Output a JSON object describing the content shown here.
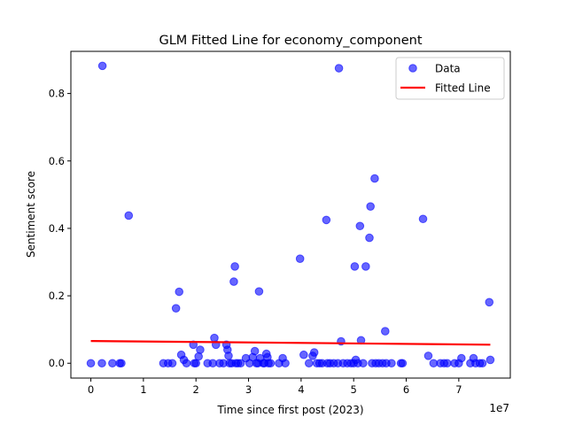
{
  "chart_data": {
    "type": "scatter",
    "title": "GLM Fitted Line for economy_component",
    "xlabel": "Time since first post (2023)",
    "ylabel": "Sentiment score",
    "x_offset_label": "1e7",
    "x_scale_factor": 10000000,
    "xlim": [
      -0.38,
      7.98
    ],
    "ylim": [
      -0.044,
      0.925
    ],
    "x_ticks": [
      0,
      1,
      2,
      3,
      4,
      5,
      6,
      7
    ],
    "x_tick_labels": [
      "0",
      "1",
      "2",
      "3",
      "4",
      "5",
      "6",
      "7"
    ],
    "y_ticks": [
      0.0,
      0.2,
      0.4,
      0.6,
      0.8
    ],
    "y_tick_labels": [
      "0.0",
      "0.2",
      "0.4",
      "0.6",
      "0.8"
    ],
    "grid": false,
    "legend_position": "top-right",
    "legend": [
      {
        "label": "Data",
        "kind": "marker",
        "color": "#0000ff"
      },
      {
        "label": "Fitted Line",
        "kind": "line",
        "color": "#ff0000"
      }
    ],
    "series": [
      {
        "name": "Data",
        "kind": "scatter",
        "color": "#0000ff",
        "points": [
          [
            0.0,
            0.0
          ],
          [
            0.21,
            0.0
          ],
          [
            0.22,
            0.882
          ],
          [
            0.41,
            0.0
          ],
          [
            0.55,
            0.0
          ],
          [
            0.58,
            0.0
          ],
          [
            0.72,
            0.438
          ],
          [
            1.38,
            0.0
          ],
          [
            1.47,
            0.0
          ],
          [
            1.55,
            0.0
          ],
          [
            1.62,
            0.163
          ],
          [
            1.68,
            0.212
          ],
          [
            1.72,
            0.025
          ],
          [
            1.77,
            0.01
          ],
          [
            1.82,
            0.0
          ],
          [
            1.95,
            0.055
          ],
          [
            1.97,
            0.0
          ],
          [
            2.0,
            0.0
          ],
          [
            2.05,
            0.02
          ],
          [
            2.08,
            0.04
          ],
          [
            2.22,
            0.0
          ],
          [
            2.32,
            0.0
          ],
          [
            2.35,
            0.075
          ],
          [
            2.38,
            0.055
          ],
          [
            2.45,
            0.0
          ],
          [
            2.52,
            0.0
          ],
          [
            2.58,
            0.055
          ],
          [
            2.6,
            0.04
          ],
          [
            2.62,
            0.022
          ],
          [
            2.64,
            0.0
          ],
          [
            2.68,
            0.0
          ],
          [
            2.72,
            0.242
          ],
          [
            2.74,
            0.287
          ],
          [
            2.76,
            0.0
          ],
          [
            2.8,
            0.0
          ],
          [
            2.85,
            0.0
          ],
          [
            2.95,
            0.015
          ],
          [
            3.02,
            0.0
          ],
          [
            3.08,
            0.018
          ],
          [
            3.12,
            0.036
          ],
          [
            3.15,
            0.0
          ],
          [
            3.18,
            0.0
          ],
          [
            3.2,
            0.213
          ],
          [
            3.22,
            0.015
          ],
          [
            3.28,
            0.0
          ],
          [
            3.3,
            0.0
          ],
          [
            3.34,
            0.028
          ],
          [
            3.36,
            0.018
          ],
          [
            3.38,
            0.0
          ],
          [
            3.42,
            0.0
          ],
          [
            3.58,
            0.0
          ],
          [
            3.65,
            0.015
          ],
          [
            3.7,
            0.0
          ],
          [
            3.98,
            0.31
          ],
          [
            4.05,
            0.025
          ],
          [
            4.15,
            0.0
          ],
          [
            4.22,
            0.022
          ],
          [
            4.25,
            0.032
          ],
          [
            4.3,
            0.0
          ],
          [
            4.35,
            0.0
          ],
          [
            4.4,
            0.0
          ],
          [
            4.48,
            0.425
          ],
          [
            4.5,
            0.0
          ],
          [
            4.55,
            0.0
          ],
          [
            4.62,
            0.0
          ],
          [
            4.7,
            0.0
          ],
          [
            4.72,
            0.875
          ],
          [
            4.76,
            0.065
          ],
          [
            4.8,
            0.0
          ],
          [
            4.88,
            0.0
          ],
          [
            4.95,
            0.0
          ],
          [
            5.0,
            0.0
          ],
          [
            5.02,
            0.287
          ],
          [
            5.04,
            0.01
          ],
          [
            5.08,
            0.0
          ],
          [
            5.12,
            0.407
          ],
          [
            5.14,
            0.068
          ],
          [
            5.18,
            0.0
          ],
          [
            5.23,
            0.287
          ],
          [
            5.3,
            0.372
          ],
          [
            5.32,
            0.465
          ],
          [
            5.35,
            0.0
          ],
          [
            5.4,
            0.548
          ],
          [
            5.42,
            0.0
          ],
          [
            5.48,
            0.0
          ],
          [
            5.55,
            0.0
          ],
          [
            5.6,
            0.095
          ],
          [
            5.62,
            0.0
          ],
          [
            5.72,
            0.0
          ],
          [
            5.9,
            0.0
          ],
          [
            5.93,
            0.0
          ],
          [
            6.32,
            0.428
          ],
          [
            6.42,
            0.022
          ],
          [
            6.52,
            0.0
          ],
          [
            6.65,
            0.0
          ],
          [
            6.72,
            0.0
          ],
          [
            6.78,
            0.0
          ],
          [
            6.92,
            0.0
          ],
          [
            7.0,
            0.0
          ],
          [
            7.05,
            0.015
          ],
          [
            7.22,
            0.0
          ],
          [
            7.28,
            0.015
          ],
          [
            7.32,
            0.0
          ],
          [
            7.4,
            0.0
          ],
          [
            7.45,
            0.0
          ],
          [
            7.58,
            0.181
          ],
          [
            7.6,
            0.01
          ]
        ]
      },
      {
        "name": "Fitted Line",
        "kind": "line",
        "color": "#ff0000",
        "points": [
          [
            0.0,
            0.066
          ],
          [
            7.6,
            0.055
          ]
        ]
      }
    ]
  }
}
